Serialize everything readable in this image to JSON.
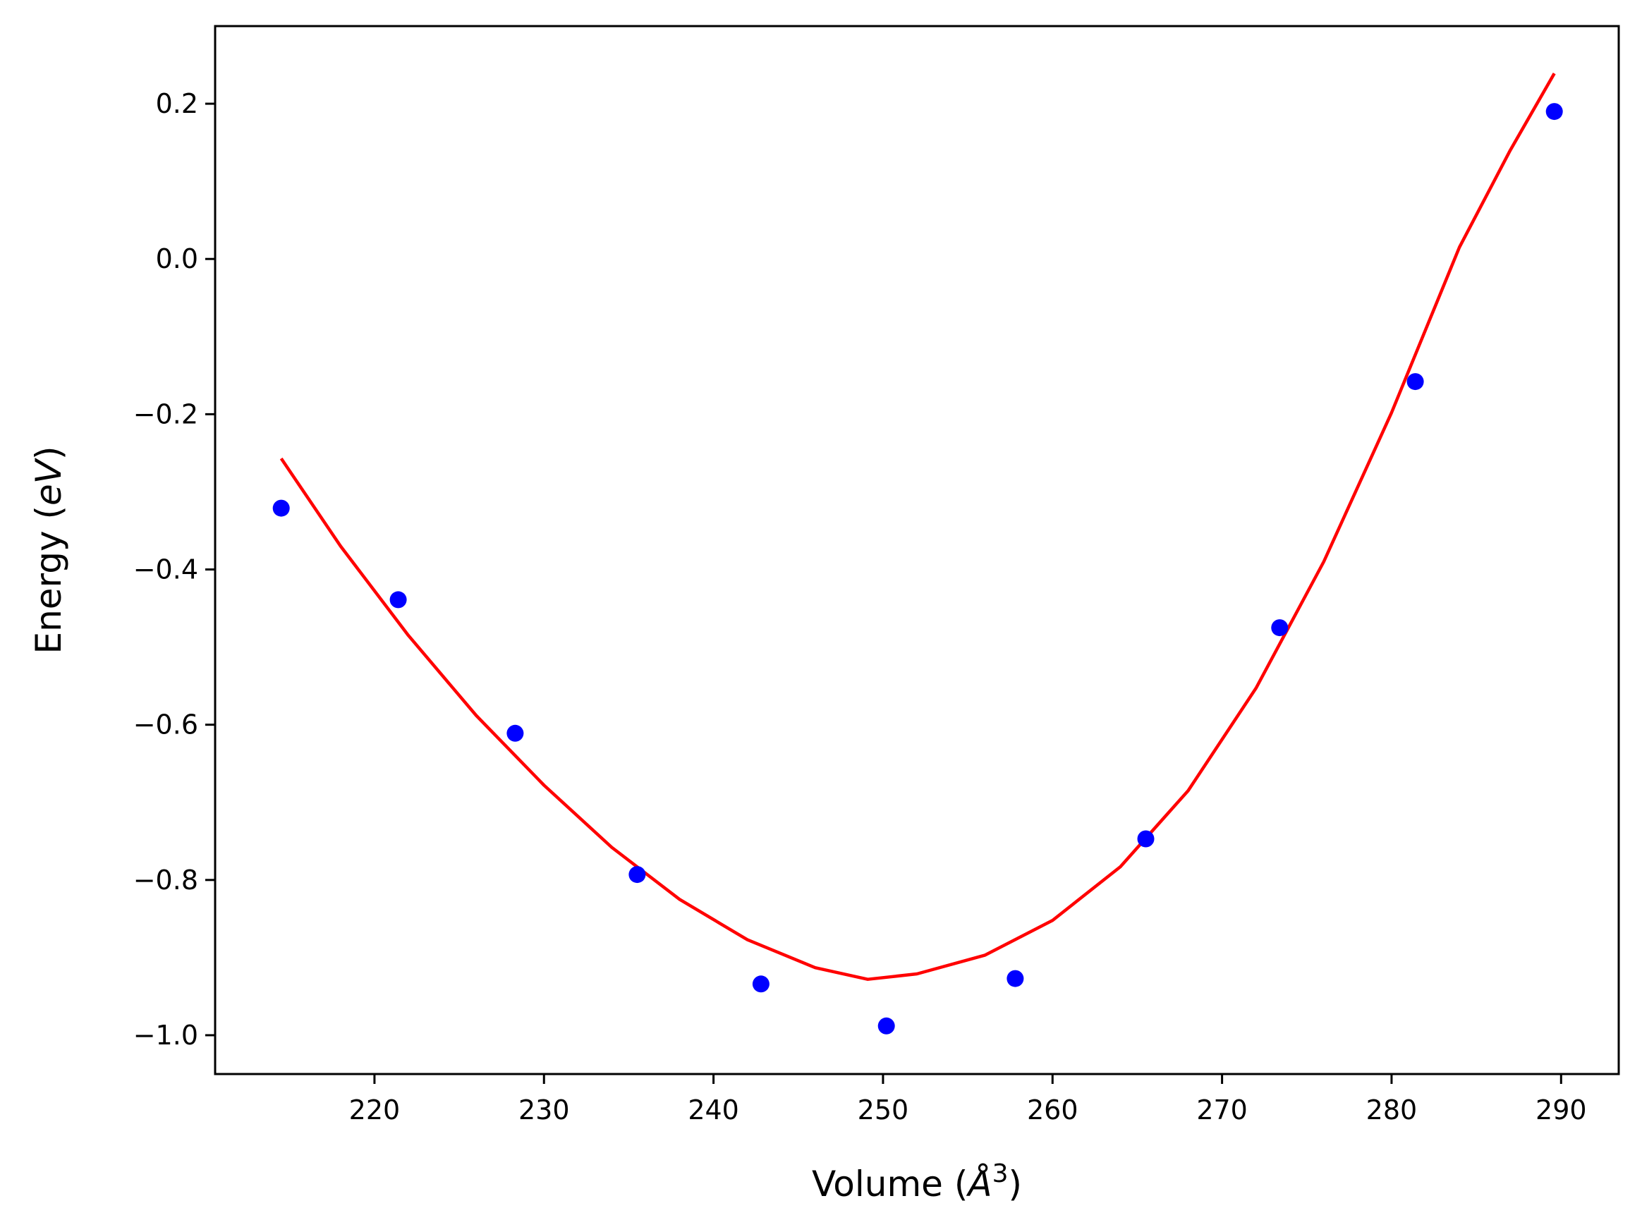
{
  "chart_data": {
    "type": "scatter",
    "title": "",
    "xlabel": {
      "prefix": "Volume (",
      "unit_symbol": "Å",
      "unit_exponent": "3",
      "suffix": ")"
    },
    "ylabel": {
      "prefix": "Energy (",
      "unit": "eV",
      "suffix": ")"
    },
    "xlim": [
      210.6,
      293.4
    ],
    "ylim": [
      -1.05,
      0.3
    ],
    "xticks": [
      220,
      230,
      240,
      250,
      260,
      270,
      280,
      290
    ],
    "xtick_labels": [
      "220",
      "230",
      "240",
      "250",
      "260",
      "270",
      "280",
      "290"
    ],
    "yticks": [
      0.2,
      0.0,
      -0.2,
      -0.4,
      -0.6,
      -0.8,
      -1.0
    ],
    "ytick_labels": [
      "0.2",
      "0.0",
      "−0.2",
      "−0.4",
      "−0.6",
      "−0.8",
      "−1.0"
    ],
    "grid": false,
    "legend": "none",
    "series": [
      {
        "kind": "scatter",
        "color": "#0000ff",
        "x": [
          214.5,
          221.4,
          228.3,
          235.5,
          242.8,
          250.2,
          257.8,
          265.5,
          273.4,
          281.4,
          289.6
        ],
        "y": [
          -0.321,
          -0.439,
          -0.611,
          -0.793,
          -0.934,
          -0.988,
          -0.927,
          -0.747,
          -0.475,
          -0.158,
          0.19
        ]
      },
      {
        "kind": "line",
        "color": "#ff0000",
        "x": [
          214.5,
          218,
          222,
          226,
          230,
          234,
          238,
          242,
          246,
          249.1,
          252,
          256,
          260,
          264,
          268,
          272,
          276,
          280,
          284,
          287,
          289.6
        ],
        "y": [
          -0.257,
          -0.37,
          -0.485,
          -0.588,
          -0.678,
          -0.758,
          -0.825,
          -0.877,
          -0.913,
          -0.928,
          -0.921,
          -0.897,
          -0.852,
          -0.783,
          -0.685,
          -0.553,
          -0.39,
          -0.198,
          0.015,
          0.14,
          0.239
        ]
      }
    ]
  }
}
